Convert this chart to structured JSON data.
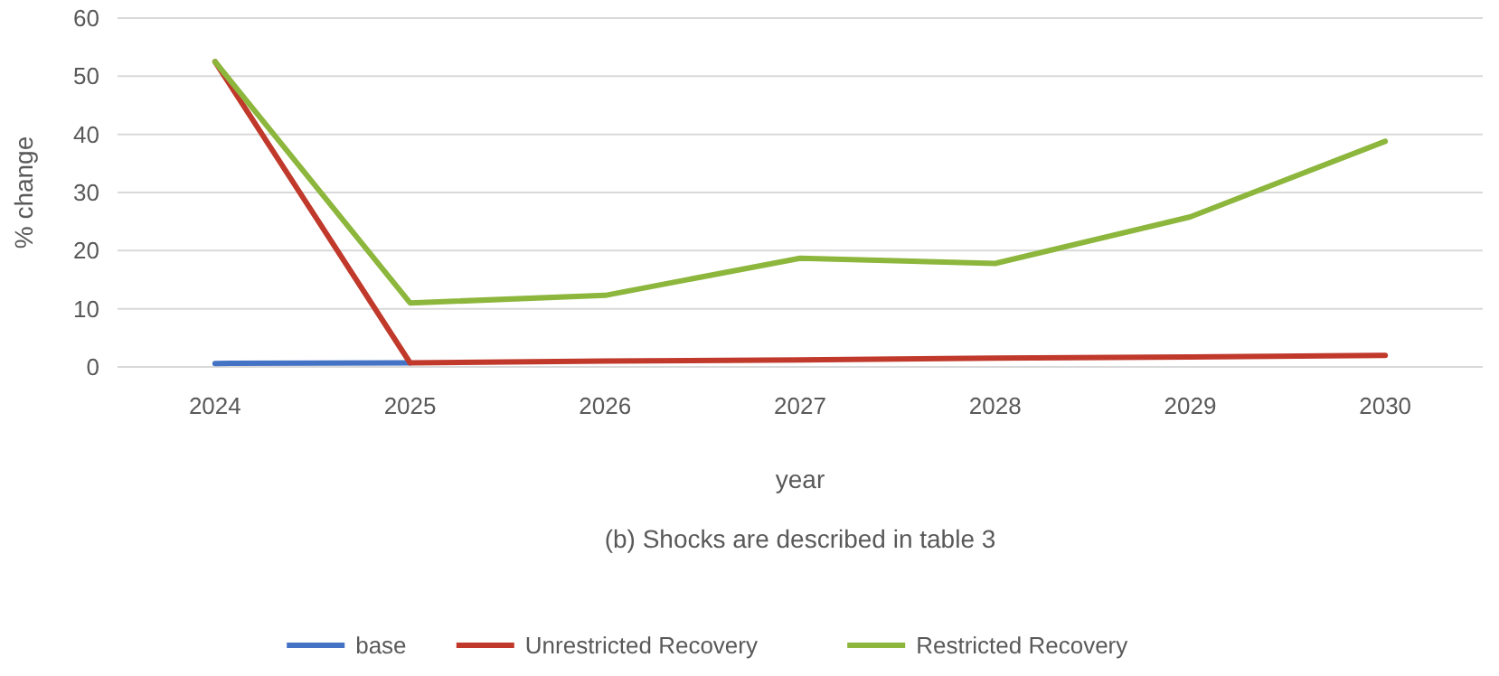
{
  "chart_data": {
    "type": "line",
    "xlabel": "year",
    "ylabel": "% change",
    "categories": [
      "2024",
      "2025",
      "2026",
      "2027",
      "2028",
      "2029",
      "2030"
    ],
    "series": [
      {
        "name": "base",
        "color": "#4472c4",
        "values": [
          0.6,
          0.7,
          null,
          null,
          null,
          null,
          null
        ]
      },
      {
        "name": "Unrestricted Recovery",
        "color": "#c0392b",
        "values": [
          52.5,
          0.7,
          1.0,
          1.2,
          1.5,
          1.7,
          2.0
        ]
      },
      {
        "name": "Restricted Recovery",
        "color": "#8cb63c",
        "values": [
          52.5,
          11,
          12.3,
          18.7,
          17.8,
          25.8,
          38.8
        ]
      }
    ],
    "ylim": [
      0,
      60
    ],
    "yticks": [
      0,
      10,
      20,
      30,
      40,
      50,
      60
    ],
    "grid": "y",
    "legend": "bottom",
    "marker": "none",
    "line_style": "solid",
    "annotations": [
      "(b) Shocks are described in table 3"
    ]
  }
}
